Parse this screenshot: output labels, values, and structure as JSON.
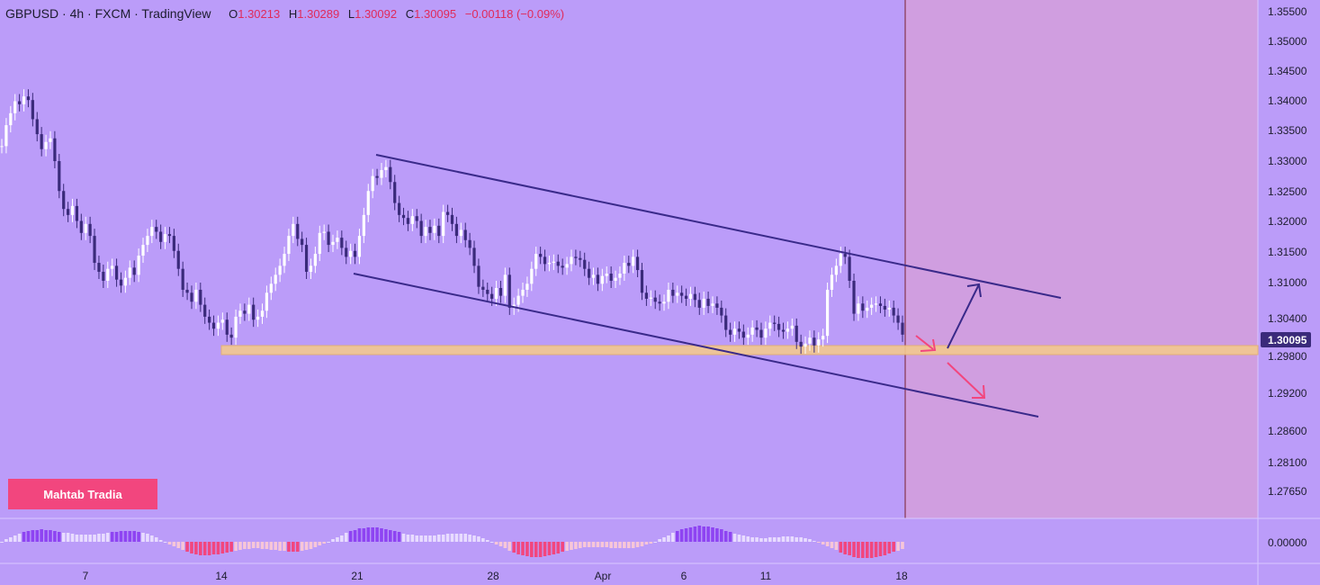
{
  "header": {
    "symbol": "GBPUSD · 4h · FXCM · TradingView",
    "o_label": "O",
    "o_value": "1.30213",
    "h_label": "H",
    "h_value": "1.30289",
    "l_label": "L",
    "l_value": "1.30092",
    "c_label": "C",
    "c_value": "1.30095",
    "change": "−0.00118 (−0.09%)"
  },
  "badge": {
    "label": "Mahtab Tradia"
  },
  "colors": {
    "background": "#bb9cf9",
    "future_zone": "#d09ee0",
    "candle": "#ffffff",
    "candle_down": "#3a2a7a",
    "trendline": "#3a2a8a",
    "support_zone": "#f3c98f",
    "arrow_up": "#3a2a8a",
    "arrow_down": "#f2467e",
    "osc_pos_strong": "#8e44f2",
    "osc_pos_weak": "#e8dcff",
    "osc_neg_strong": "#f2467e",
    "osc_neg_weak": "#f7c6d8",
    "price_badge": "#3a2a7a"
  },
  "chart_data": {
    "type": "candlestick",
    "price_axis_ticks": [
      "1.35500",
      "1.35000",
      "1.34500",
      "1.34000",
      "1.33500",
      "1.33000",
      "1.32500",
      "1.32000",
      "1.31500",
      "1.31000",
      "1.30400",
      "1.29800",
      "1.29200",
      "1.28600",
      "1.28100",
      "1.27650"
    ],
    "oscillator_tick": "0.00000",
    "last_price": "1.30095",
    "x_ticks": [
      "7",
      "14",
      "21",
      "28",
      "Apr",
      "6",
      "11",
      "18"
    ],
    "close_series": [
      1.3325,
      1.336,
      1.338,
      1.34,
      1.3395,
      1.3408,
      1.3402,
      1.337,
      1.3345,
      1.332,
      1.3332,
      1.3338,
      1.33,
      1.325,
      1.322,
      1.321,
      1.3225,
      1.32,
      1.318,
      1.3195,
      1.3175,
      1.313,
      1.3115,
      1.31,
      1.312,
      1.3125,
      1.3102,
      1.3092,
      1.3105,
      1.3122,
      1.311,
      1.3142,
      1.316,
      1.3175,
      1.319,
      1.3182,
      1.3165,
      1.3178,
      1.3175,
      1.315,
      1.312,
      1.3085,
      1.308,
      1.3065,
      1.3085,
      1.306,
      1.304,
      1.303,
      1.302,
      1.303,
      1.3035,
      1.301,
      1.3005,
      1.304,
      1.305,
      1.3045,
      1.306,
      1.3035,
      1.304,
      1.305,
      1.308,
      1.3095,
      1.311,
      1.3125,
      1.3145,
      1.3175,
      1.3195,
      1.317,
      1.316,
      1.3115,
      1.3125,
      1.3145,
      1.318,
      1.3182,
      1.316,
      1.3165,
      1.3172,
      1.3155,
      1.314,
      1.315,
      1.314,
      1.3175,
      1.321,
      1.325,
      1.3275,
      1.3272,
      1.3285,
      1.329,
      1.3265,
      1.323,
      1.321,
      1.3205,
      1.3195,
      1.3208,
      1.32,
      1.3175,
      1.319,
      1.318,
      1.3192,
      1.3175,
      1.3215,
      1.321,
      1.3195,
      1.3175,
      1.3185,
      1.3168,
      1.3155,
      1.3125,
      1.309,
      1.3085,
      1.3078,
      1.307,
      1.3088,
      1.3075,
      1.311,
      1.3055,
      1.306,
      1.3075,
      1.3085,
      1.3095,
      1.312,
      1.3145,
      1.314,
      1.3128,
      1.313,
      1.3132,
      1.3125,
      1.3122,
      1.3128,
      1.314,
      1.3138,
      1.3135,
      1.312,
      1.3105,
      1.311,
      1.3095,
      1.3108,
      1.3112,
      1.31,
      1.3105,
      1.3112,
      1.313,
      1.3125,
      1.314,
      1.3118,
      1.308,
      1.307,
      1.3072,
      1.3065,
      1.3062,
      1.3065,
      1.3085,
      1.3075,
      1.308,
      1.3075,
      1.307,
      1.3078,
      1.3068,
      1.3055,
      1.307,
      1.3058,
      1.3062,
      1.3055,
      1.3042,
      1.3018,
      1.301,
      1.302,
      1.3015,
      1.3005,
      1.301,
      1.3022,
      1.3018,
      1.3005,
      1.302,
      1.303,
      1.3028,
      1.3018,
      1.3015,
      1.302,
      1.3025,
      1.2998,
      1.299,
      1.2995,
      1.3005,
      1.2992,
      1.3002,
      1.3008,
      1.3085,
      1.311,
      1.3125,
      1.3145,
      1.314,
      1.31,
      1.3045,
      1.3062,
      1.305,
      1.3055,
      1.306,
      1.3062,
      1.3058,
      1.3052,
      1.3055,
      1.3042,
      1.303,
      1.301
    ]
  }
}
